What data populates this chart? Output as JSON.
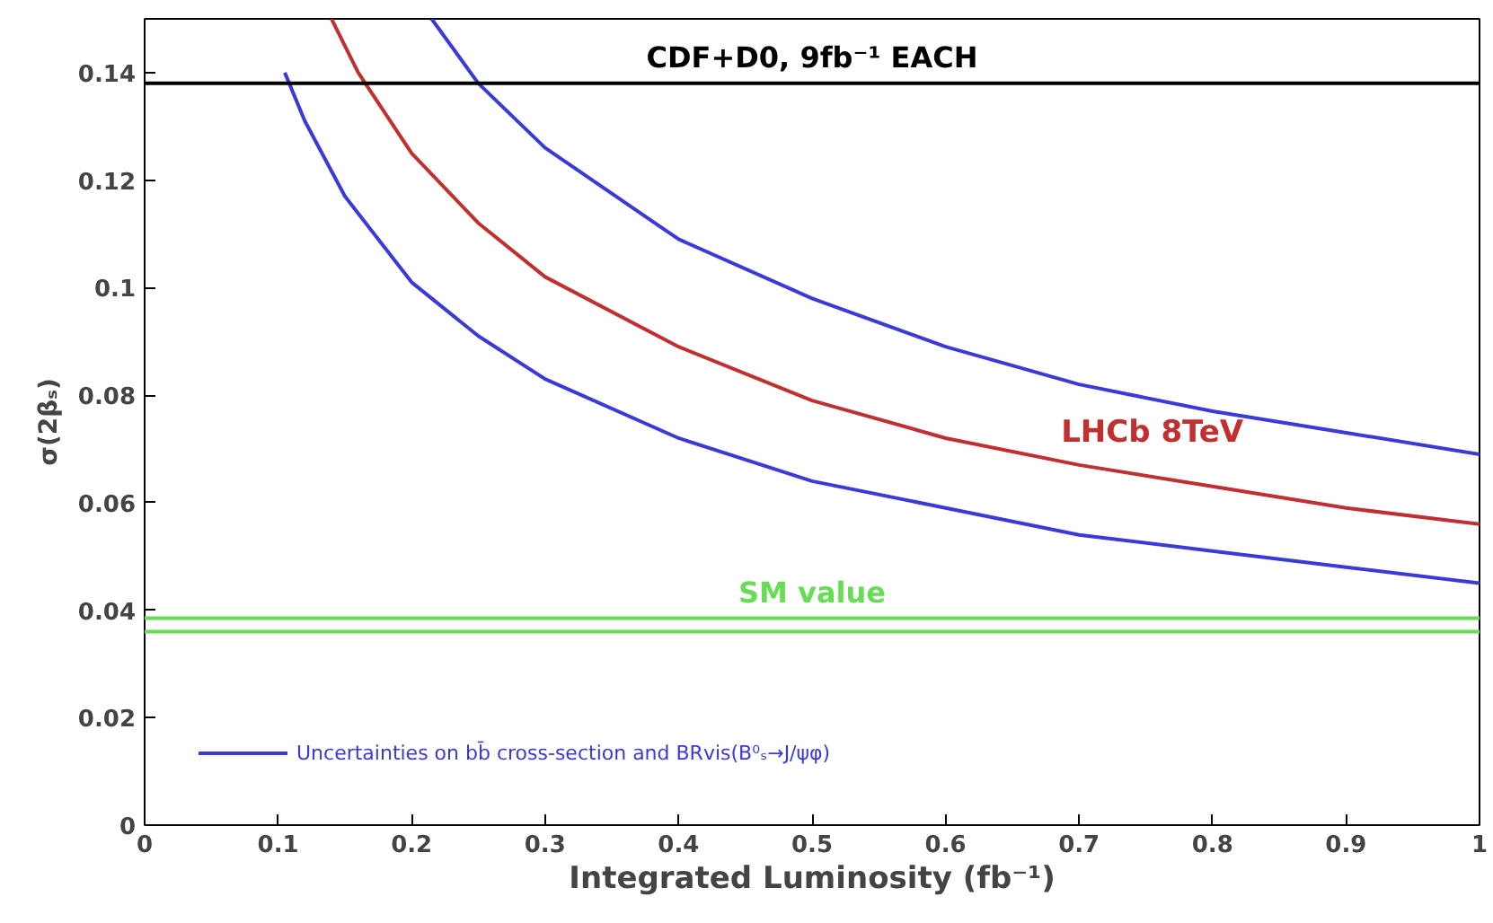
{
  "chart_data": {
    "type": "line",
    "xlabel": "Integrated Luminosity (fb⁻¹)",
    "ylabel": "σ(2βₛ)",
    "xlim": [
      0,
      1
    ],
    "ylim": [
      0,
      0.15
    ],
    "xticks": [
      0,
      0.1,
      0.2,
      0.3,
      0.4,
      0.5,
      0.6,
      0.7,
      0.8,
      0.9,
      1
    ],
    "yticks": [
      0,
      0.02,
      0.04,
      0.06,
      0.08,
      0.1,
      0.12,
      0.14
    ],
    "grid": false,
    "legend": "bottom left",
    "line_style": "solid",
    "series": [
      {
        "name": "Uncertainties on bb̄ cross-section and BRvis(B⁰ₛ→J/ψφ)",
        "color": "#3a3ad8",
        "x": [
          0.215,
          0.25,
          0.3,
          0.4,
          0.5,
          0.6,
          0.7,
          0.8,
          0.9,
          1.0
        ],
        "values": [
          0.15,
          0.138,
          0.126,
          0.109,
          0.098,
          0.089,
          0.082,
          0.077,
          0.073,
          0.069
        ]
      },
      {
        "name": "LHCb 8TeV",
        "color": "#c03030",
        "x": [
          0.14,
          0.16,
          0.2,
          0.25,
          0.3,
          0.4,
          0.5,
          0.6,
          0.7,
          0.8,
          0.9,
          1.0
        ],
        "values": [
          0.15,
          0.14,
          0.125,
          0.112,
          0.102,
          0.089,
          0.079,
          0.072,
          0.067,
          0.063,
          0.059,
          0.056
        ]
      },
      {
        "color": "#3a3ad8",
        "x": [
          0.105,
          0.12,
          0.15,
          0.2,
          0.25,
          0.3,
          0.4,
          0.5,
          0.6,
          0.7,
          0.8,
          0.9,
          1.0
        ],
        "values": [
          0.14,
          0.131,
          0.117,
          0.101,
          0.091,
          0.083,
          0.072,
          0.064,
          0.059,
          0.054,
          0.051,
          0.048,
          0.045
        ]
      }
    ],
    "ref_lines": [
      {
        "axis": "y",
        "value": 0.138,
        "label": "CDF+D0, 9fb⁻¹ EACH",
        "color": "#000000"
      },
      {
        "axis": "y",
        "value": 0.0385,
        "label": "SM value",
        "color": "#66dd55"
      },
      {
        "axis": "y",
        "value": 0.036,
        "label": null,
        "color": "#66dd55"
      }
    ]
  }
}
